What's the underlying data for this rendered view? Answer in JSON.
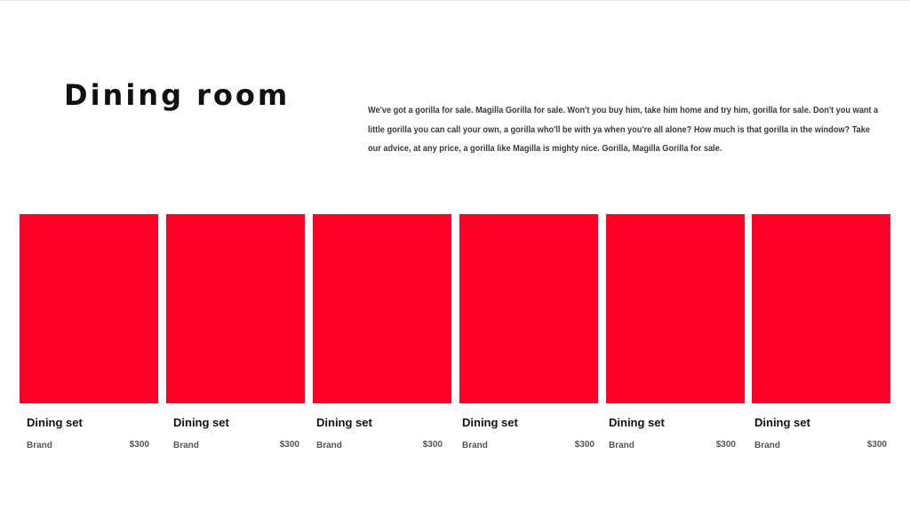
{
  "title": "Dining room",
  "intro": "We've got a gorilla for sale. Magilla Gorilla for sale. Won't you buy him, take him home and try him, gorilla for sale. Don't you want a little gorilla you can call your own, a gorilla who'll be with ya when you're all alone? How much is that gorilla in the window? Take our advice, at any price, a gorilla like Magilla is mighty nice. Gorilla, Magilla Gorilla for sale.",
  "accent_color": "#ff0028",
  "products": [
    {
      "name": "Dining set",
      "brand": "Brand",
      "price": "$300"
    },
    {
      "name": "Dining set",
      "brand": "Brand",
      "price": "$300"
    },
    {
      "name": "Dining set",
      "brand": "Brand",
      "price": "$300"
    },
    {
      "name": "Dining set",
      "brand": "Brand",
      "price": "$300"
    },
    {
      "name": "Dining set",
      "brand": "Brand",
      "price": "$300"
    },
    {
      "name": "Dining set",
      "brand": "Brand",
      "price": "$300"
    }
  ]
}
